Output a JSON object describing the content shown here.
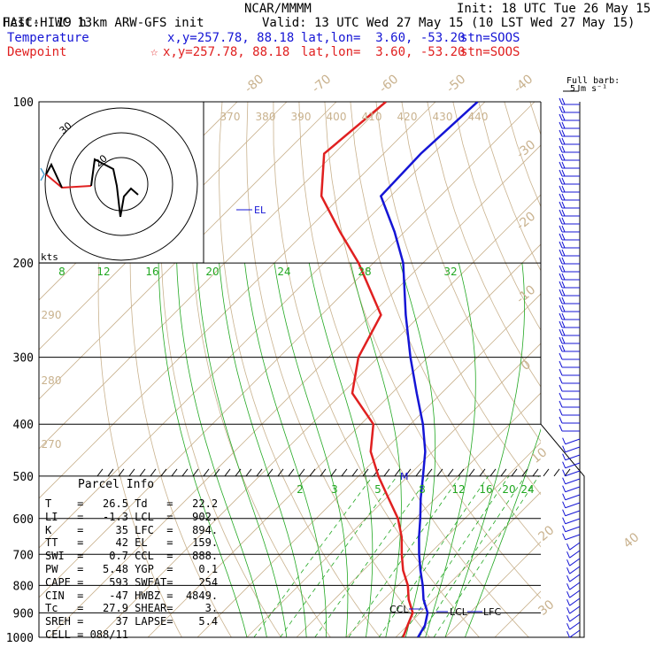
{
  "header": {
    "model": "HAIC-HIWC 13km ARW-GFS init",
    "org": "NCAR/MMMM",
    "init": "Init: 18 UTC Tue 26 May 15",
    "fcst_label": "Fcst:",
    "fcst_value": "19 h",
    "valid": "Valid: 13 UTC Wed 27 May 15 (10 LST Wed 27 May 15)"
  },
  "legend": {
    "temperature": {
      "name": "Temperature",
      "xy": "x,y=257.78, 88.18",
      "latlon": "lat,lon=  3.60, -53.20",
      "stn": "stn=SOOS",
      "color": "#1515d5"
    },
    "dewpoint": {
      "name": "Dewpoint",
      "marker": "☆",
      "xy": "x,y=257.78, 88.18",
      "latlon": "lat,lon=  3.60, -53.20",
      "stn": "stn=SOOS",
      "color": "#e02020"
    }
  },
  "barbs": {
    "title_line1": "Full barb:",
    "title_line2": "5 m s⁻¹"
  },
  "hodograph": {
    "units": "kts",
    "ring_labels": [
      "30",
      "20"
    ]
  },
  "parcel_info": {
    "title": "Parcel Info",
    "rows": [
      {
        "k1": "T",
        "v1": "26.5",
        "k2": "Td",
        "v2": "22.2"
      },
      {
        "k1": "LI",
        "v1": "-1.3",
        "k2": "LCL",
        "v2": "902."
      },
      {
        "k1": "K",
        "v1": "35",
        "k2": "LFC",
        "v2": "894."
      },
      {
        "k1": "TT",
        "v1": "42",
        "k2": "EL",
        "v2": "159."
      },
      {
        "k1": "SWI",
        "v1": "0.7",
        "k2": "CCL",
        "v2": "888."
      },
      {
        "k1": "PW",
        "v1": "5.48",
        "k2": "YGP",
        "v2": "0.1"
      },
      {
        "k1": "CAPE",
        "v1": "593",
        "k2": "SWEAT",
        "v2": "254"
      },
      {
        "k1": "CIN",
        "v1": "-47",
        "k2": "HWBZ",
        "v2": "4849."
      },
      {
        "k1": "Tc",
        "v1": "27.9",
        "k2": "SHEAR",
        "v2": "3."
      },
      {
        "k1": "SREH",
        "v1": "37",
        "k2": "LAPSE",
        "v2": "5.4"
      },
      {
        "k1": "CELL",
        "v1": "088/11",
        "k2": "",
        "v2": ""
      }
    ]
  },
  "chart_data": {
    "type": "line",
    "title": "",
    "xlabel": "",
    "ylabel": "",
    "y_axis": {
      "scale": "log-pressure",
      "unit": "hPa",
      "range": [
        1000,
        100
      ],
      "ticks": [
        100,
        200,
        300,
        400,
        500,
        600,
        700,
        800,
        900,
        1000
      ]
    },
    "isotherm_labels": [
      "-80",
      "-70",
      "-60",
      "-50",
      "-40",
      "-30",
      "-20",
      "-10",
      "0",
      "10",
      "20",
      "30",
      "40"
    ],
    "theta_labels_upper": [
      "370",
      "380",
      "390",
      "400",
      "410",
      "420",
      "430",
      "440"
    ],
    "theta_labels_left": [
      "290",
      "280",
      "270"
    ],
    "mixing_ratio_labels_upper": [
      "8",
      "12",
      "16",
      "20",
      "24",
      "28",
      "32"
    ],
    "mixing_ratio_labels_lower": [
      "2",
      "3",
      "5",
      "8",
      "12",
      "16",
      "20",
      "24"
    ],
    "annotations": [
      "EL",
      "CCL",
      "LCL",
      "LFC",
      "M"
    ],
    "series": [
      {
        "name": "Temperature",
        "color": "#1515d5",
        "p": [
          1000,
          950,
          900,
          850,
          800,
          750,
          700,
          650,
          600,
          550,
          500,
          450,
          400,
          350,
          300,
          250,
          200,
          175,
          150,
          125,
          100
        ],
        "v": [
          24.5,
          23.5,
          21.5,
          18.0,
          15.0,
          11.5,
          8.0,
          4.5,
          1.0,
          -3.0,
          -7.0,
          -11.5,
          -17.5,
          -25.0,
          -33.5,
          -43.0,
          -54.0,
          -62.0,
          -72.0,
          -72.5,
          -71.5
        ]
      },
      {
        "name": "Dewpoint",
        "color": "#e02020",
        "p": [
          1000,
          950,
          900,
          850,
          800,
          750,
          700,
          650,
          600,
          550,
          500,
          450,
          400,
          350,
          300,
          250,
          200,
          175,
          150,
          125,
          100
        ],
        "v": [
          21.5,
          20.0,
          18.5,
          15.0,
          12.0,
          8.0,
          4.5,
          1.0,
          -3.5,
          -9.5,
          -16.0,
          -22.5,
          -27.5,
          -38.0,
          -44.0,
          -48.0,
          -63.0,
          -73.0,
          -84.0,
          -92.0,
          -90.0
        ]
      }
    ],
    "grid": true
  }
}
